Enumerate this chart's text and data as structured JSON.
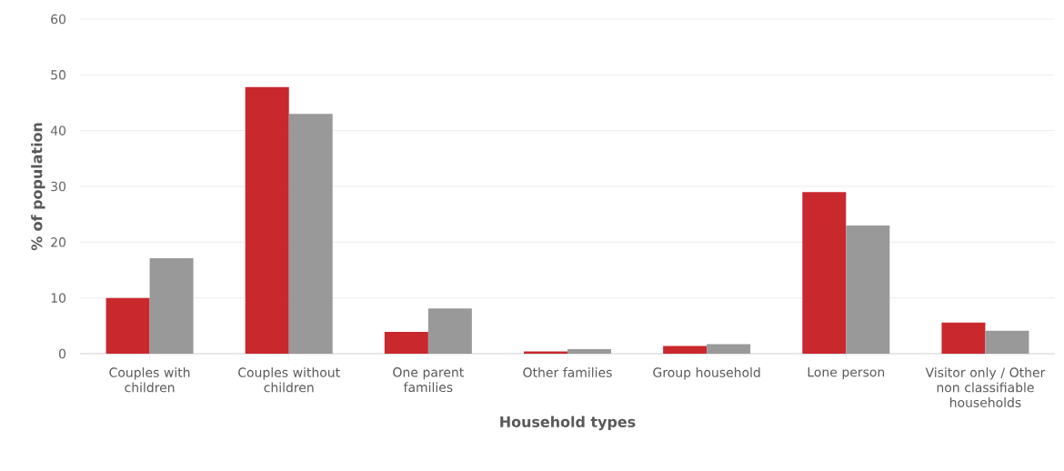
{
  "chart_data": {
    "type": "bar",
    "xlabel": "Household types",
    "ylabel": "% of population",
    "categories": [
      "Couples with children",
      "Couples without children",
      "One parent families",
      "Other families",
      "Group household",
      "Lone person",
      "Visitor only / Other non classifiable households"
    ],
    "series": [
      {
        "color": "#c9282d",
        "values": [
          10,
          47.8,
          3.9,
          0.4,
          1.4,
          29,
          5.6
        ]
      },
      {
        "color": "#999999",
        "values": [
          17.1,
          43,
          8.1,
          0.8,
          1.7,
          23,
          4.1
        ]
      }
    ],
    "ylim": [
      0,
      60
    ],
    "yticks": [
      0,
      10,
      20,
      30,
      40,
      50,
      60
    ],
    "grid": "y"
  }
}
